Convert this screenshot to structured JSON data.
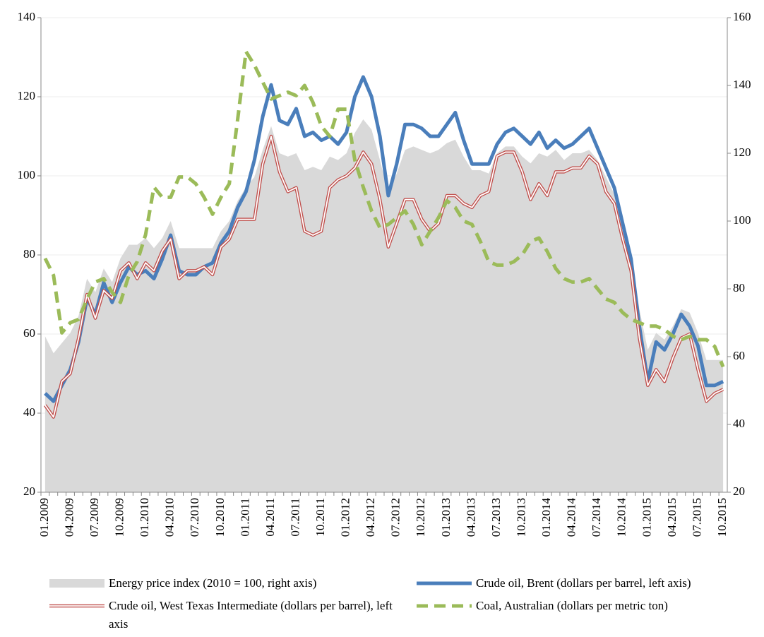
{
  "chart_data": {
    "type": "line",
    "categories": [
      "01.2009",
      null,
      null,
      "04.2009",
      null,
      null,
      "07.2009",
      null,
      null,
      "10.2009",
      null,
      null,
      "01.2010",
      null,
      null,
      "04.2010",
      null,
      null,
      "07.2010",
      null,
      null,
      "10.2010",
      null,
      null,
      "01.2011",
      null,
      null,
      "04.2011",
      null,
      null,
      "07.2011",
      null,
      null,
      "10.2011",
      null,
      null,
      "01.2012",
      null,
      null,
      "04.2012",
      null,
      null,
      "07.2012",
      null,
      null,
      "10.2012",
      null,
      null,
      "01.2013",
      null,
      null,
      "04.2013",
      null,
      null,
      "07.2013",
      null,
      null,
      "10.2013",
      null,
      null,
      "01.2014",
      null,
      null,
      "04.2014",
      null,
      null,
      "07.2014",
      null,
      null,
      "10.2014",
      null,
      null,
      "01.2015",
      null,
      null,
      "04.2015",
      null,
      null,
      "07.2015",
      null,
      null,
      "10.2015"
    ],
    "series": [
      {
        "name": "Energy price index (2010 = 100, right axis)",
        "type": "area",
        "axis": "y2",
        "color": "#d9d9d9",
        "values": [
          66,
          61,
          64,
          67,
          72,
          83,
          79,
          86,
          82,
          89,
          93,
          93,
          95,
          92,
          95,
          100,
          92,
          92,
          92,
          92,
          92,
          97,
          100,
          106,
          110,
          113,
          121,
          128,
          120,
          119,
          120,
          115,
          116,
          115,
          119,
          118,
          120,
          126,
          130,
          127,
          118,
          108,
          114,
          121,
          122,
          121,
          120,
          121,
          123,
          124,
          119,
          115,
          115,
          114,
          120,
          122,
          122,
          119,
          117,
          120,
          119,
          121,
          118,
          120,
          120,
          121,
          118,
          113,
          108,
          99,
          90,
          74,
          62,
          67,
          65,
          69,
          74,
          73,
          67,
          59,
          59,
          59
        ]
      },
      {
        "name": "Crude oil, Brent (dollars per barrel, left axis)",
        "type": "line",
        "color": "#4a7ebb",
        "values": [
          45,
          43,
          47,
          51,
          58,
          69,
          65,
          73,
          68,
          73,
          77,
          75,
          76,
          74,
          79,
          85,
          76,
          75,
          75,
          77,
          78,
          83,
          86,
          92,
          96,
          104,
          115,
          123,
          114,
          113,
          117,
          110,
          111,
          109,
          110,
          108,
          111,
          120,
          125,
          120,
          110,
          95,
          103,
          113,
          113,
          112,
          110,
          110,
          113,
          116,
          109,
          103,
          103,
          103,
          108,
          111,
          112,
          110,
          108,
          111,
          107,
          109,
          107,
          108,
          110,
          112,
          107,
          102,
          97,
          88,
          79,
          62,
          48,
          58,
          56,
          60,
          65,
          62,
          57,
          47,
          47,
          48
        ]
      },
      {
        "name": "Crude oil, West Texas Intermediate (dollars per barrel), left axis",
        "type": "double",
        "color": "#c0504d",
        "values": [
          42,
          39,
          48,
          50,
          59,
          70,
          64,
          71,
          69,
          76,
          78,
          74,
          78,
          76,
          81,
          84,
          74,
          76,
          76,
          77,
          75,
          82,
          84,
          89,
          89,
          89,
          103,
          110,
          101,
          96,
          97,
          86,
          85,
          86,
          97,
          99,
          100,
          102,
          106,
          103,
          94,
          82,
          88,
          94,
          94,
          89,
          86,
          88,
          95,
          95,
          93,
          92,
          95,
          96,
          105,
          106,
          106,
          101,
          94,
          98,
          95,
          101,
          101,
          102,
          102,
          105,
          103,
          96,
          93,
          84,
          76,
          59,
          47,
          51,
          48,
          54,
          59,
          60,
          51,
          43,
          45,
          46
        ]
      },
      {
        "name": "Coal, Australian (dollars per metric ton)",
        "type": "dashed",
        "axis": "y2",
        "color": "#9bbb59",
        "values": [
          89,
          84,
          67,
          70,
          71,
          77,
          82,
          83,
          79,
          76,
          84,
          88,
          96,
          110,
          107,
          107,
          113,
          113,
          111,
          107,
          102,
          107,
          111,
          130,
          150,
          146,
          141,
          136,
          137,
          138,
          137,
          140,
          135,
          128,
          125,
          133,
          133,
          118,
          110,
          103,
          98,
          99,
          101,
          103,
          99,
          93,
          97,
          101,
          106,
          104,
          100,
          99,
          94,
          88,
          87,
          87,
          88,
          90,
          94,
          95,
          91,
          86,
          83,
          82,
          82,
          83,
          80,
          77,
          76,
          73,
          71,
          70,
          69,
          69,
          68,
          66,
          65,
          66,
          65,
          65,
          63,
          57
        ]
      }
    ],
    "ylim": [
      20,
      140
    ],
    "yticks": [
      20,
      40,
      60,
      80,
      100,
      120,
      140
    ],
    "y2lim": [
      20,
      160
    ],
    "y2ticks": [
      20,
      40,
      60,
      80,
      100,
      120,
      140,
      160
    ],
    "grid": true
  }
}
